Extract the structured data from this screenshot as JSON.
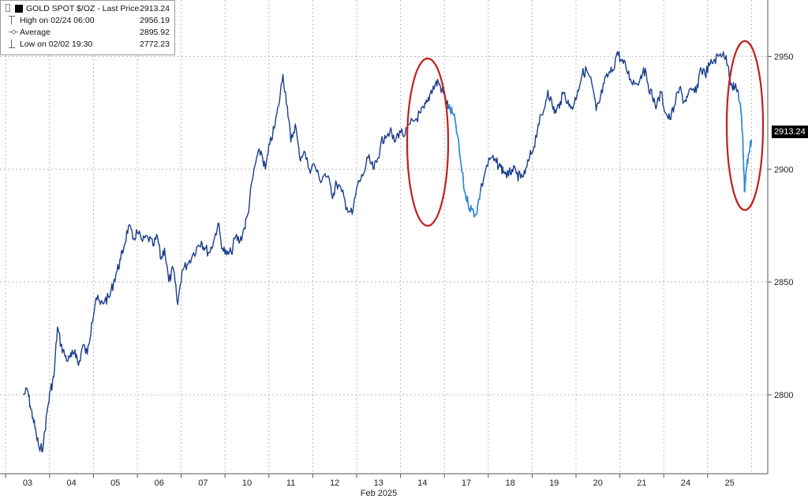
{
  "legend": {
    "title": "GOLD SPOT $/OZ - Last Price",
    "title_value": "2913.24",
    "high_label": "High on 02/24 06:00",
    "high_value": "2956.19",
    "avg_label": "Average",
    "avg_value": "2895.92",
    "low_label": "Low on 02/02 19:30",
    "low_value": "2772.23"
  },
  "last_price_badge": "2913.24",
  "colors": {
    "price_line": "#1b3f8b",
    "highlight_segment": "#2f8ad8",
    "annotation_circle": "#c21f1f",
    "grid": "#b8b8b8",
    "badge_bg": "#000000"
  },
  "annotations": [
    {
      "type": "ellipse",
      "label": "",
      "around_x": "14"
    },
    {
      "type": "ellipse",
      "label": "",
      "around_x": "25"
    }
  ],
  "chart_data": {
    "type": "line",
    "title": "",
    "xlabel": "Feb 2025",
    "ylabel": "",
    "ylim": [
      2765,
      2975
    ],
    "y_ticks": [
      2800,
      2850,
      2900,
      2950
    ],
    "y_axis_position": "right",
    "grid": true,
    "legend_position": "top-left",
    "x_tick_labels": [
      "03",
      "04",
      "05",
      "06",
      "07",
      "10",
      "11",
      "12",
      "13",
      "14",
      "17",
      "18",
      "19",
      "20",
      "21",
      "24",
      "25"
    ],
    "series": [
      {
        "name": "GOLD SPOT $/OZ - Last Price",
        "x": [
          -0.1,
          0.0,
          0.06,
          0.12,
          0.2,
          0.28,
          0.36,
          0.44,
          0.52,
          0.6,
          0.68,
          0.76,
          0.84,
          0.92,
          1.0,
          1.08,
          1.16,
          1.26,
          1.36,
          1.46,
          1.56,
          1.66,
          1.76,
          1.86,
          1.96,
          2.04,
          2.12,
          2.2,
          2.3,
          2.4,
          2.5,
          2.62,
          2.74,
          2.86,
          2.96,
          3.04,
          3.12,
          3.22,
          3.32,
          3.42,
          3.52,
          3.64,
          3.76,
          3.88,
          3.96,
          4.04,
          4.14,
          4.24,
          4.34,
          4.44,
          4.54,
          4.64,
          4.74,
          4.84,
          4.94,
          5.02,
          5.12,
          5.22,
          5.32,
          5.42,
          5.52,
          5.62,
          5.72,
          5.82,
          5.92,
          6.0,
          6.1,
          6.2,
          6.3,
          6.42,
          6.54,
          6.66,
          6.78,
          6.9,
          6.96,
          7.04,
          7.16,
          7.28,
          7.4,
          7.52,
          7.64,
          7.76,
          7.88,
          7.96,
          8.04,
          8.14,
          8.26,
          8.36,
          8.48,
          8.6,
          8.72,
          8.84,
          8.96,
          9.04,
          9.12,
          9.2,
          9.28,
          9.36,
          9.44,
          9.52,
          9.6,
          9.68,
          9.76,
          9.86,
          9.96,
          10.04,
          10.12,
          10.22,
          10.32,
          10.44,
          10.56,
          10.68,
          10.78,
          10.86,
          10.96,
          11.04,
          11.14,
          11.24,
          11.34,
          11.44,
          11.54,
          11.64,
          11.74,
          11.86,
          11.96,
          12.04,
          12.14,
          12.24,
          12.34,
          12.44,
          12.54,
          12.64,
          12.74,
          12.86,
          12.96,
          13.04,
          13.14,
          13.24,
          13.34,
          13.44,
          13.54,
          13.64,
          13.74,
          13.86,
          13.96,
          14.04,
          14.14,
          14.24,
          14.34,
          14.44,
          14.54,
          14.64,
          14.74,
          14.86,
          14.96,
          15.04,
          15.14,
          15.24,
          15.34,
          15.44,
          15.54,
          15.64,
          15.74,
          15.86,
          15.96,
          16.04,
          16.12,
          16.2,
          16.26,
          16.3,
          16.34,
          16.38,
          16.44,
          16.5
        ],
        "y": [
          2800,
          2802,
          2795,
          2790,
          2782,
          2775,
          2778,
          2792,
          2802,
          2808,
          2830,
          2822,
          2818,
          2815,
          2817,
          2820,
          2813,
          2822,
          2818,
          2832,
          2843,
          2840,
          2842,
          2843,
          2850,
          2855,
          2860,
          2866,
          2875,
          2869,
          2872,
          2868,
          2870,
          2866,
          2870,
          2860,
          2865,
          2850,
          2856,
          2840,
          2855,
          2858,
          2862,
          2866,
          2868,
          2865,
          2863,
          2868,
          2876,
          2865,
          2862,
          2863,
          2870,
          2868,
          2874,
          2880,
          2895,
          2905,
          2908,
          2900,
          2911,
          2918,
          2928,
          2942,
          2928,
          2912,
          2920,
          2905,
          2908,
          2900,
          2902,
          2895,
          2898,
          2893,
          2888,
          2894,
          2890,
          2883,
          2880,
          2893,
          2897,
          2905,
          2900,
          2903,
          2910,
          2915,
          2917,
          2912,
          2917,
          2915,
          2920,
          2922,
          2925,
          2927,
          2930,
          2935,
          2937,
          2939,
          2935,
          2932,
          2927,
          2925,
          2920,
          2905,
          2890,
          2885,
          2882,
          2880,
          2890,
          2900,
          2905,
          2903,
          2901,
          2899,
          2897,
          2900,
          2898,
          2896,
          2898,
          2905,
          2910,
          2920,
          2924,
          2935,
          2928,
          2925,
          2930,
          2934,
          2928,
          2928,
          2935,
          2942,
          2944,
          2938,
          2926,
          2930,
          2938,
          2942,
          2944,
          2952,
          2948,
          2945,
          2940,
          2938,
          2940,
          2945,
          2938,
          2932,
          2928,
          2934,
          2925,
          2922,
          2928,
          2936,
          2930,
          2932,
          2935,
          2934,
          2945,
          2942,
          2946,
          2948,
          2950,
          2952,
          2946,
          2938,
          2936,
          2934,
          2925,
          2915,
          2890,
          2900,
          2907,
          2913
        ]
      }
    ],
    "highlight_segments": [
      {
        "from_x": 9.6,
        "to_x": 10.32
      },
      {
        "from_x": 16.2,
        "to_x": 16.5
      }
    ]
  }
}
